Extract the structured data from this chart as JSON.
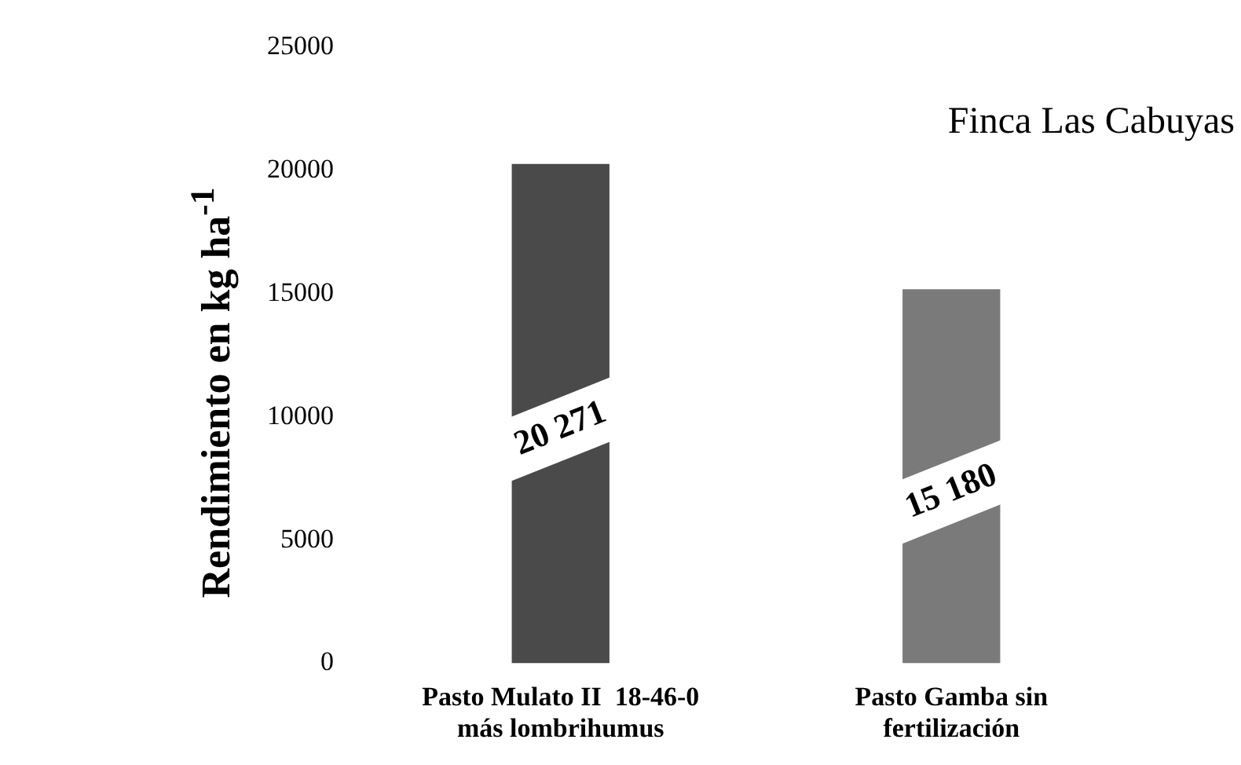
{
  "chart_data": {
    "type": "bar",
    "title": "Finca Las Cabuyas",
    "ylabel": "Rendimiento en kg ha$^{-1}$",
    "categories": [
      "Pasto Mulato II  18-46-0 más lombrihumus",
      "Pasto Gamba sin fertilización"
    ],
    "values": [
      20271,
      15180
    ],
    "value_labels": [
      "20 271",
      "15 180"
    ],
    "colors": [
      "#4a4a4a",
      "#7a7a7a"
    ],
    "ylim": [
      0,
      25000
    ],
    "yticks": [
      0,
      5000,
      10000,
      15000,
      20000,
      25000
    ],
    "grid": false,
    "legend": false
  }
}
